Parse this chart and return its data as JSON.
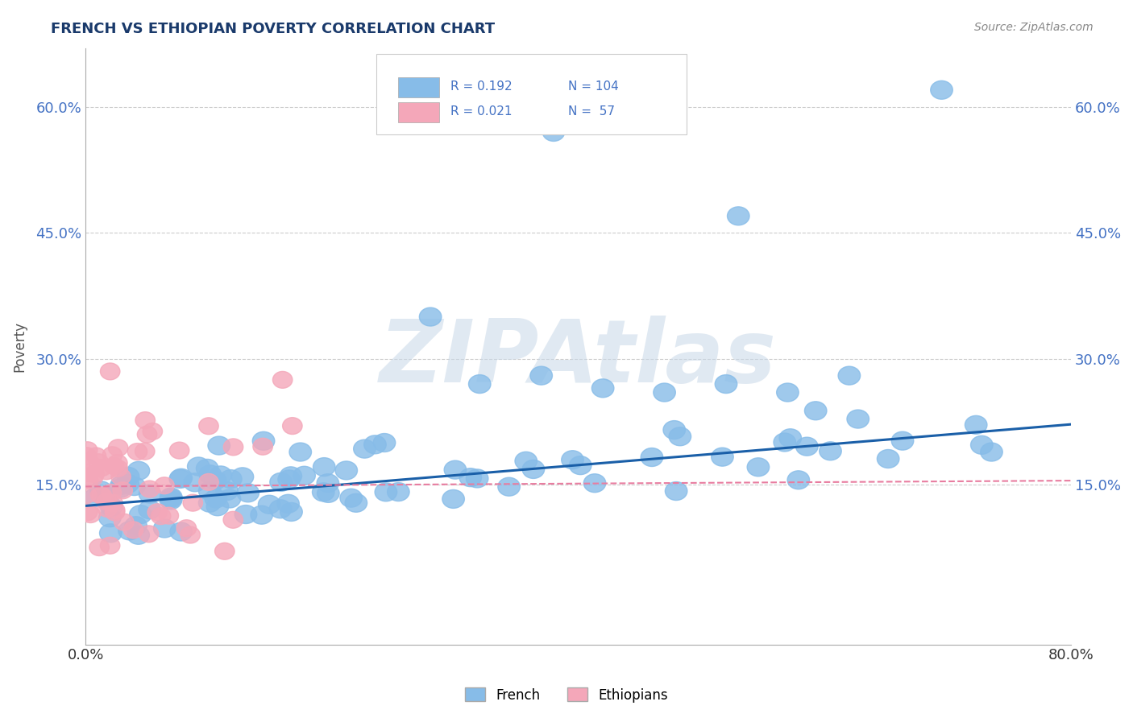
{
  "title": "FRENCH VS ETHIOPIAN POVERTY CORRELATION CHART",
  "source_text": "Source: ZipAtlas.com",
  "ylabel": "Poverty",
  "xlim": [
    0.0,
    0.8
  ],
  "ylim": [
    -0.04,
    0.67
  ],
  "yticks": [
    0.0,
    0.15,
    0.3,
    0.45,
    0.6
  ],
  "xticks": [
    0.0,
    0.1,
    0.2,
    0.3,
    0.4,
    0.5,
    0.6,
    0.7,
    0.8
  ],
  "xtick_labels": [
    "0.0%",
    "",
    "",
    "",
    "",
    "",
    "",
    "",
    "80.0%"
  ],
  "french_R": 0.192,
  "french_N": 104,
  "ethiopian_R": 0.021,
  "ethiopian_N": 57,
  "french_color": "#87BCE8",
  "ethiopian_color": "#F4A7B9",
  "trend_french_color": "#1A5FA8",
  "trend_ethiopian_color": "#E87DA0",
  "watermark": "ZIPAtlas",
  "background_color": "#FFFFFF",
  "grid_color": "#CCCCCC",
  "french_seed": 42,
  "ethiopian_seed": 7,
  "trend_french_x0": 0.0,
  "trend_french_y0": 0.125,
  "trend_french_x1": 0.8,
  "trend_french_y1": 0.222,
  "trend_eth_x0": 0.0,
  "trend_eth_y0": 0.148,
  "trend_eth_x1": 0.8,
  "trend_eth_y1": 0.155
}
